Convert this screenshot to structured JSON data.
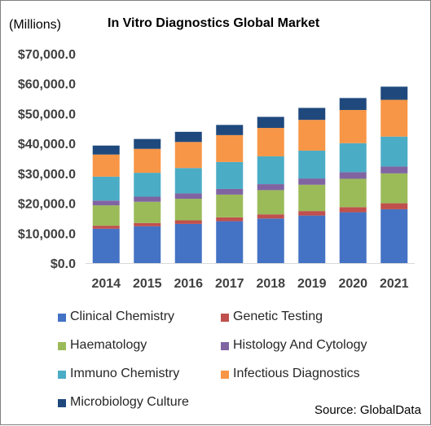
{
  "header": {
    "units": "(Millions)",
    "title": "In Vitro Diagnostics Global Market"
  },
  "footer": {
    "source": "Source: GlobalData"
  },
  "chart_data": {
    "type": "bar",
    "stacked": true,
    "title": "In Vitro Diagnostics Global Market",
    "ylabel": "(Millions)",
    "xlabel": "",
    "categories": [
      "2014",
      "2015",
      "2016",
      "2017",
      "2018",
      "2019",
      "2020",
      "2021"
    ],
    "ylim": [
      0,
      70000
    ],
    "yticks": [
      "$0.0",
      "$10,000.0",
      "$20,000.0",
      "$30,000.0",
      "$40,000.0",
      "$50,000.0",
      "$60,000.0",
      "$70,000.0"
    ],
    "gridlines": false,
    "legend_position": "bottom",
    "series": [
      {
        "name": "Clinical Chemistry",
        "color": "#4472C4",
        "values": [
          11500,
          12300,
          13100,
          14000,
          14900,
          15900,
          17000,
          18000
        ]
      },
      {
        "name": "Genetic Testing",
        "color": "#C0504D",
        "values": [
          1000,
          1100,
          1200,
          1300,
          1400,
          1500,
          1700,
          2000
        ]
      },
      {
        "name": "Haematology",
        "color": "#9BBB59",
        "values": [
          6800,
          7100,
          7200,
          7600,
          8100,
          8800,
          9500,
          10000
        ]
      },
      {
        "name": "Histology And Cytology",
        "color": "#8064A2",
        "values": [
          1600,
          1700,
          1800,
          1900,
          2000,
          2100,
          2200,
          2300
        ]
      },
      {
        "name": "Immuno Chemistry",
        "color": "#4BACC6",
        "values": [
          8000,
          8000,
          8500,
          9000,
          9300,
          9300,
          9700,
          10000
        ]
      },
      {
        "name": "Infectious Diagnostics",
        "color": "#F79646",
        "values": [
          7400,
          8000,
          8700,
          9000,
          9500,
          10300,
          11100,
          12300
        ]
      },
      {
        "name": "Microbiology Culture",
        "color": "#1F497D",
        "values": [
          3000,
          3300,
          3400,
          3400,
          3700,
          4000,
          4000,
          4400
        ]
      }
    ]
  }
}
